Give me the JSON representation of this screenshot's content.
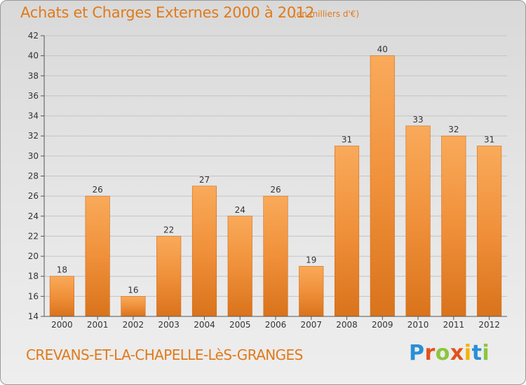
{
  "chart_data": {
    "type": "bar",
    "title": "Achats et Charges Externes 2000 à 2012",
    "subtitle": "(en milliers d'€)",
    "categories": [
      "2000",
      "2001",
      "2002",
      "2003",
      "2004",
      "2005",
      "2006",
      "2007",
      "2008",
      "2009",
      "2010",
      "2011",
      "2012"
    ],
    "values": [
      18,
      26,
      16,
      22,
      27,
      24,
      26,
      19,
      31,
      40,
      33,
      32,
      31
    ],
    "ylim": [
      14,
      42
    ],
    "yticks": [
      14,
      16,
      18,
      20,
      22,
      24,
      26,
      28,
      30,
      32,
      34,
      36,
      38,
      40,
      42
    ],
    "grid": true,
    "bar_color": "#f0903a",
    "bar_color_light": "#f9aa5a",
    "bar_color_dark": "#d9731c"
  },
  "footer": {
    "commune": "CREVANS-ET-LA-CHAPELLE-LèS-GRANGES",
    "logo": [
      "P",
      "r",
      "o",
      "x",
      "i",
      "t",
      "i"
    ],
    "logo_colors": [
      "#2a8fd6",
      "#e2531b",
      "#8cc63f",
      "#e2531b",
      "#f4b400",
      "#2a8fd6",
      "#8cc63f"
    ]
  }
}
